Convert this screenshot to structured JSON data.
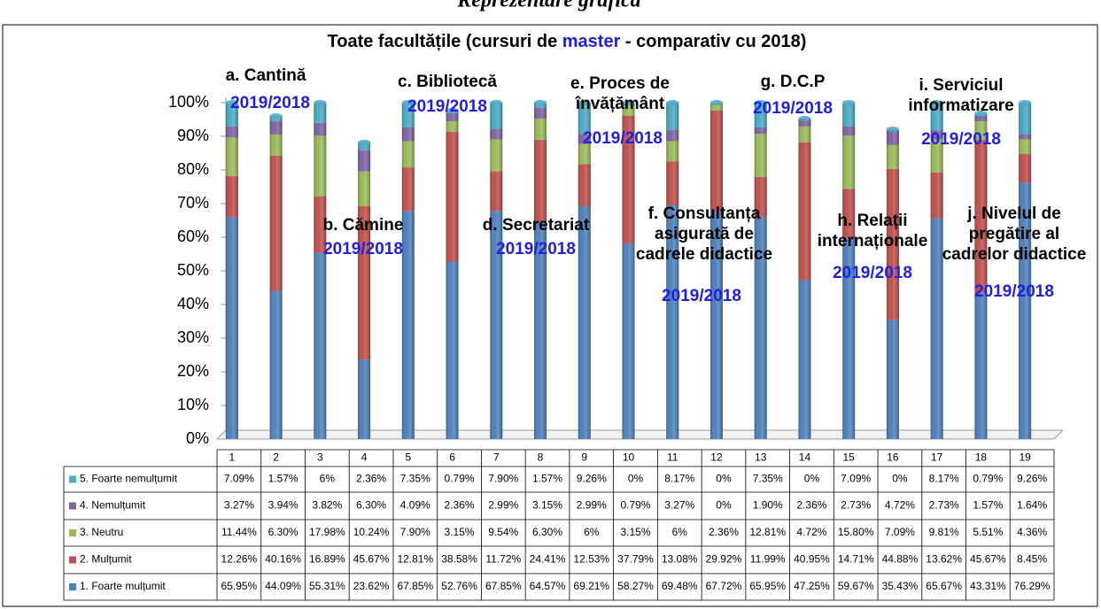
{
  "header": "Reprezentare grafică",
  "chart_data": {
    "type": "stacked_bar",
    "title": [
      "Toate facultățile (cursuri de ",
      "master",
      " - comparativ cu 2018)"
    ],
    "categories": [
      "1",
      "2",
      "3",
      "4",
      "5",
      "6",
      "7",
      "8",
      "9",
      "10",
      "11",
      "12",
      "13",
      "14",
      "15",
      "16",
      "17",
      "18",
      "19"
    ],
    "series": [
      {
        "name": "1. Foarte mulțumit",
        "color": "#4f81bd",
        "values": [
          65.95,
          44.09,
          55.31,
          23.62,
          67.85,
          52.76,
          67.85,
          64.57,
          69.21,
          58.27,
          69.48,
          67.72,
          65.95,
          47.25,
          59.67,
          35.43,
          65.67,
          43.31,
          76.29
        ],
        "value_labels": [
          "65.95%",
          "44.09%",
          "55.31%",
          "23.62%",
          "67.85%",
          "52.76%",
          "67.85%",
          "64.57%",
          "69.21%",
          "58.27%",
          "69.48%",
          "67.72%",
          "65.95%",
          "47.25%",
          "59.67%",
          "35.43%",
          "65.67%",
          "43.31%",
          "76.29%"
        ]
      },
      {
        "name": "2. Mulțumit",
        "color": "#c0504d",
        "values": [
          12.26,
          40.16,
          16.89,
          45.67,
          12.81,
          38.58,
          11.72,
          24.41,
          12.53,
          37.79,
          13.08,
          29.92,
          11.99,
          40.95,
          14.71,
          44.88,
          13.62,
          45.67,
          8.45
        ],
        "value_labels": [
          "12.26%",
          "40.16%",
          "16.89%",
          "45.67%",
          "12.81%",
          "38.58%",
          "11.72%",
          "24.41%",
          "12.53%",
          "37.79%",
          "13.08%",
          "29.92%",
          "11.99%",
          "40.95%",
          "14.71%",
          "44.88%",
          "13.62%",
          "45.67%",
          "8.45%"
        ]
      },
      {
        "name": "3. Neutru",
        "color": "#9bbb59",
        "values": [
          11.44,
          6.3,
          17.98,
          10.24,
          7.9,
          3.15,
          9.54,
          6.3,
          6,
          3.15,
          6,
          2.36,
          12.81,
          4.72,
          15.8,
          7.09,
          9.81,
          5.51,
          4.36
        ],
        "value_labels": [
          "11.44%",
          "6.30%",
          "17.98%",
          "10.24%",
          "7.90%",
          "3.15%",
          "9.54%",
          "6.30%",
          "6%",
          "3.15%",
          "6%",
          "2.36%",
          "12.81%",
          "4.72%",
          "15.80%",
          "7.09%",
          "9.81%",
          "5.51%",
          "4.36%"
        ]
      },
      {
        "name": "4. Nemulțumit",
        "color": "#8064a2",
        "values": [
          3.27,
          3.94,
          3.82,
          6.3,
          4.09,
          2.36,
          2.99,
          3.15,
          2.99,
          0.79,
          3.27,
          0,
          1.9,
          2.36,
          2.73,
          4.72,
          2.73,
          1.57,
          1.64
        ],
        "value_labels": [
          "3.27%",
          "3.94%",
          "3.82%",
          "6.30%",
          "4.09%",
          "2.36%",
          "2.99%",
          "3.15%",
          "2.99%",
          "0.79%",
          "3.27%",
          "0%",
          "1.90%",
          "2.36%",
          "2.73%",
          "4.72%",
          "2.73%",
          "1.57%",
          "1.64%"
        ]
      },
      {
        "name": "5. Foarte nemulțumit",
        "color": "#4bacc6",
        "values": [
          7.09,
          1.57,
          6,
          2.36,
          7.35,
          0.79,
          7.9,
          1.57,
          9.26,
          0,
          8.17,
          0,
          7.35,
          0,
          7.09,
          0,
          8.17,
          0.79,
          9.26
        ],
        "value_labels": [
          "7.09%",
          "1.57%",
          "6%",
          "2.36%",
          "7.35%",
          "0.79%",
          "7.90%",
          "1.57%",
          "9.26%",
          "0%",
          "8.17%",
          "0%",
          "7.35%",
          "0%",
          "7.09%",
          "0%",
          "8.17%",
          "0.79%",
          "9.26%"
        ]
      }
    ],
    "ylim": [
      0,
      100
    ],
    "yticks": [
      {
        "value": 0,
        "label": "0%"
      },
      {
        "value": 10,
        "label": "10%"
      },
      {
        "value": 20,
        "label": "20%"
      },
      {
        "value": 30,
        "label": "30%"
      },
      {
        "value": 40,
        "label": "40%"
      },
      {
        "value": 50,
        "label": "50%"
      },
      {
        "value": 60,
        "label": "60%"
      },
      {
        "value": 70,
        "label": "70%"
      },
      {
        "value": 80,
        "label": "80%"
      },
      {
        "value": 90,
        "label": "90%"
      },
      {
        "value": 100,
        "label": "100%"
      }
    ],
    "annotations": [
      {
        "lines": [
          "a. Cantină"
        ],
        "period": "2019/2018"
      },
      {
        "lines": [
          "b. Cămine"
        ],
        "period": "2019/2018"
      },
      {
        "lines": [
          "c. Bibliotecă"
        ],
        "period": "2019/2018"
      },
      {
        "lines": [
          "d. Secretariat"
        ],
        "period": "2019/2018"
      },
      {
        "lines": [
          "e. Proces de",
          "învățământ"
        ],
        "period": "2019/2018"
      },
      {
        "lines": [
          "f. Consultanța",
          "asigurată de",
          "cadrele didactice"
        ],
        "period": "2019/2018"
      },
      {
        "lines": [
          "g. D.C.P"
        ],
        "period": "2019/2018"
      },
      {
        "lines": [
          "h. Relații",
          "internaționale"
        ],
        "period": "2019/2018"
      },
      {
        "lines": [
          "i. Serviciul",
          "informatizare"
        ],
        "period": "2019/2018"
      },
      {
        "lines": [
          "j. Nivelul de",
          "pregătire al",
          "cadrelor didactice"
        ],
        "period": "2019/2018"
      }
    ]
  }
}
